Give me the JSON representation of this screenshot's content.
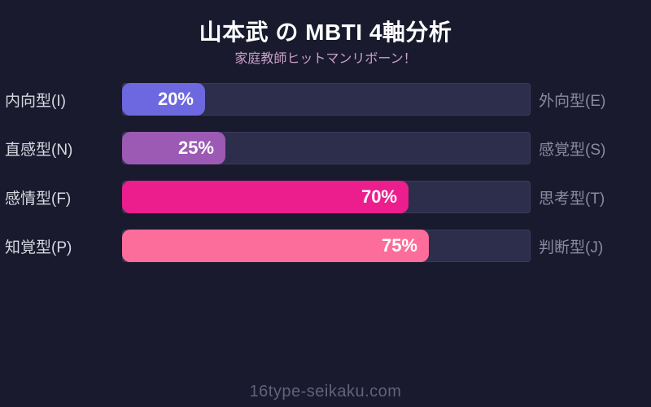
{
  "title": "山本武 の MBTI 4軸分析",
  "subtitle": "家庭教師ヒットマンリボーン！",
  "watermark": "16type-seikaku.com",
  "colors": {
    "background": "#191a2d",
    "track": "#2d2d4c",
    "track_border": "#3a3a5c",
    "title_text": "#ffffff",
    "subtitle_text": "#c9a0ca",
    "left_label_text": "#d8d8e2",
    "right_label_text": "#8b8b9f",
    "watermark_text": "#62627a"
  },
  "chart_data": {
    "type": "bar",
    "orientation": "horizontal",
    "value_range": [
      0,
      100
    ],
    "title": "山本武 の MBTI 4軸分析",
    "subtitle": "家庭教師ヒットマンリボーン！",
    "grid": false,
    "legend": false,
    "rows": [
      {
        "left_label": "内向型(I)",
        "right_label": "外向型(E)",
        "value": 20,
        "value_label": "20%",
        "color": "#6e68e0"
      },
      {
        "left_label": "直感型(N)",
        "right_label": "感覚型(S)",
        "value": 25,
        "value_label": "25%",
        "color": "#9c5ab4"
      },
      {
        "left_label": "感情型(F)",
        "right_label": "思考型(T)",
        "value": 70,
        "value_label": "70%",
        "color": "#ec1d8d"
      },
      {
        "left_label": "知覚型(P)",
        "right_label": "判断型(J)",
        "value": 75,
        "value_label": "75%",
        "color": "#fd6d9b"
      }
    ]
  }
}
